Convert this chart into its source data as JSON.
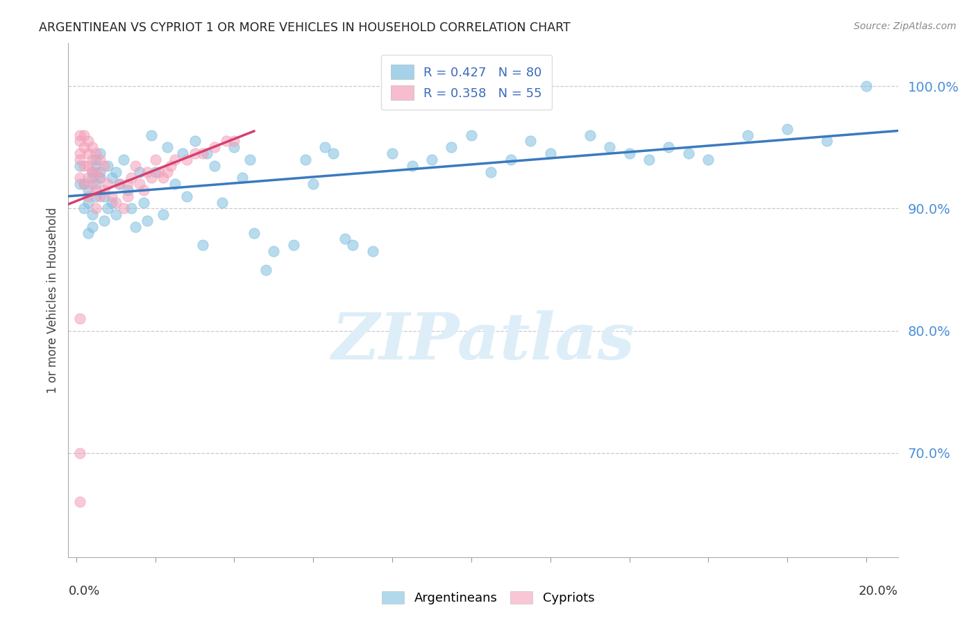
{
  "title": "ARGENTINEAN VS CYPRIOT 1 OR MORE VEHICLES IN HOUSEHOLD CORRELATION CHART",
  "source": "Source: ZipAtlas.com",
  "ylabel": "1 or more Vehicles in Household",
  "r_argentinean": 0.427,
  "n_argentinean": 80,
  "r_cypriot": 0.358,
  "n_cypriot": 55,
  "color_argentinean": "#7fbfdf",
  "color_cypriot": "#f4a0b8",
  "line_color_argentinean": "#3a7abf",
  "line_color_cypriot": "#d44070",
  "watermark": "ZIPatlas",
  "watermark_color": "#ddeef8",
  "ytick_labels": [
    "70.0%",
    "80.0%",
    "90.0%",
    "100.0%"
  ],
  "ytick_values": [
    0.7,
    0.8,
    0.9,
    1.0
  ],
  "ymin": 0.615,
  "ymax": 1.035,
  "xmin": -0.002,
  "xmax": 0.208,
  "argentinean_x": [
    0.001,
    0.001,
    0.002,
    0.002,
    0.003,
    0.003,
    0.003,
    0.004,
    0.004,
    0.004,
    0.004,
    0.005,
    0.005,
    0.005,
    0.005,
    0.006,
    0.006,
    0.006,
    0.007,
    0.007,
    0.008,
    0.008,
    0.009,
    0.009,
    0.01,
    0.01,
    0.011,
    0.012,
    0.013,
    0.014,
    0.015,
    0.016,
    0.017,
    0.018,
    0.019,
    0.02,
    0.022,
    0.023,
    0.025,
    0.027,
    0.028,
    0.03,
    0.032,
    0.033,
    0.035,
    0.037,
    0.04,
    0.042,
    0.044,
    0.045,
    0.048,
    0.05,
    0.055,
    0.058,
    0.06,
    0.063,
    0.065,
    0.068,
    0.07,
    0.075,
    0.08,
    0.085,
    0.09,
    0.095,
    0.1,
    0.105,
    0.11,
    0.115,
    0.12,
    0.13,
    0.135,
    0.14,
    0.145,
    0.15,
    0.155,
    0.16,
    0.17,
    0.18,
    0.19,
    0.2
  ],
  "argentinean_y": [
    0.935,
    0.92,
    0.92,
    0.9,
    0.915,
    0.905,
    0.88,
    0.93,
    0.925,
    0.895,
    0.885,
    0.94,
    0.935,
    0.92,
    0.91,
    0.945,
    0.93,
    0.925,
    0.91,
    0.89,
    0.935,
    0.9,
    0.925,
    0.905,
    0.93,
    0.895,
    0.92,
    0.94,
    0.915,
    0.9,
    0.885,
    0.93,
    0.905,
    0.89,
    0.96,
    0.93,
    0.895,
    0.95,
    0.92,
    0.945,
    0.91,
    0.955,
    0.87,
    0.945,
    0.935,
    0.905,
    0.95,
    0.925,
    0.94,
    0.88,
    0.85,
    0.865,
    0.87,
    0.94,
    0.92,
    0.95,
    0.945,
    0.875,
    0.87,
    0.865,
    0.945,
    0.935,
    0.94,
    0.95,
    0.96,
    0.93,
    0.94,
    0.955,
    0.945,
    0.96,
    0.95,
    0.945,
    0.94,
    0.95,
    0.945,
    0.94,
    0.96,
    0.965,
    0.955,
    1.0
  ],
  "cypriot_x": [
    0.001,
    0.001,
    0.001,
    0.001,
    0.001,
    0.001,
    0.001,
    0.001,
    0.002,
    0.002,
    0.002,
    0.002,
    0.003,
    0.003,
    0.003,
    0.003,
    0.003,
    0.004,
    0.004,
    0.004,
    0.004,
    0.005,
    0.005,
    0.005,
    0.005,
    0.006,
    0.006,
    0.006,
    0.007,
    0.007,
    0.008,
    0.009,
    0.01,
    0.011,
    0.012,
    0.013,
    0.013,
    0.014,
    0.015,
    0.016,
    0.017,
    0.018,
    0.019,
    0.02,
    0.021,
    0.022,
    0.023,
    0.024,
    0.025,
    0.028,
    0.03,
    0.032,
    0.035,
    0.038,
    0.04
  ],
  "cypriot_y": [
    0.955,
    0.945,
    0.94,
    0.925,
    0.96,
    0.81,
    0.7,
    0.66,
    0.96,
    0.95,
    0.935,
    0.92,
    0.955,
    0.945,
    0.935,
    0.925,
    0.91,
    0.95,
    0.94,
    0.93,
    0.92,
    0.945,
    0.93,
    0.915,
    0.9,
    0.94,
    0.925,
    0.91,
    0.935,
    0.915,
    0.92,
    0.91,
    0.905,
    0.92,
    0.9,
    0.92,
    0.91,
    0.925,
    0.935,
    0.92,
    0.915,
    0.93,
    0.925,
    0.94,
    0.93,
    0.925,
    0.93,
    0.935,
    0.94,
    0.94,
    0.945,
    0.945,
    0.95,
    0.955,
    0.955
  ]
}
